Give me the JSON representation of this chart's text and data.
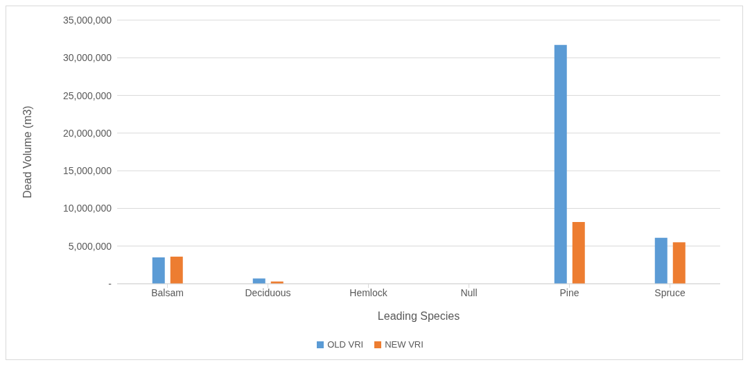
{
  "chart_data": {
    "type": "bar",
    "xlabel": "Leading Species",
    "ylabel": "Dead Volume (m3)",
    "categories": [
      "Balsam",
      "Deciduous",
      "Hemlock",
      "Null",
      "Pine",
      "Spruce"
    ],
    "series": [
      {
        "name": "OLD VRI",
        "color": "#5b9bd5",
        "values": [
          3500000,
          700000,
          0,
          0,
          31700000,
          6100000
        ]
      },
      {
        "name": "NEW VRI",
        "color": "#ed7d31",
        "values": [
          3600000,
          300000,
          0,
          0,
          8200000,
          5500000
        ]
      }
    ],
    "ylim": [
      0,
      35000000
    ],
    "yticks": [
      {
        "value": 0,
        "label": "-"
      },
      {
        "value": 5000000,
        "label": "5,000,000"
      },
      {
        "value": 10000000,
        "label": "10,000,000"
      },
      {
        "value": 15000000,
        "label": "15,000,000"
      },
      {
        "value": 20000000,
        "label": "20,000,000"
      },
      {
        "value": 25000000,
        "label": "25,000,000"
      },
      {
        "value": 30000000,
        "label": "30,000,000"
      },
      {
        "value": 35000000,
        "label": "35,000,000"
      }
    ],
    "grid": "y",
    "legend": "bottom"
  }
}
